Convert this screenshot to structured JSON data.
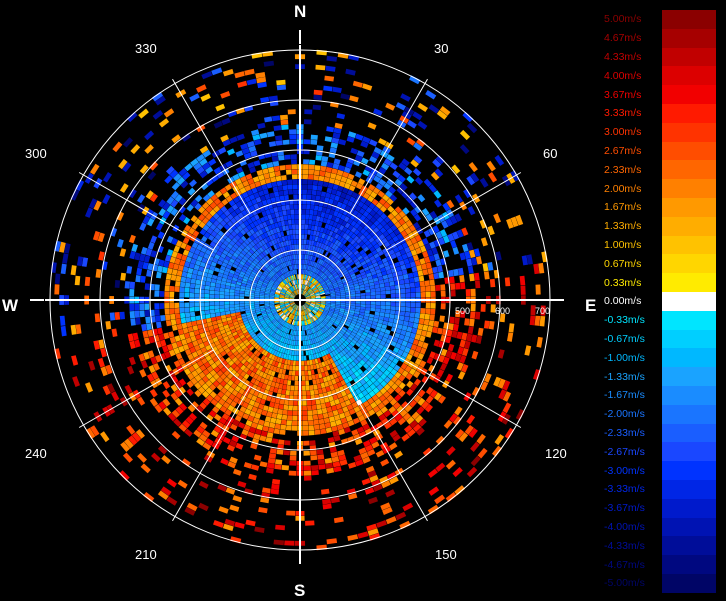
{
  "compass": {
    "n": "N",
    "e": "E",
    "s": "S",
    "w": "W"
  },
  "azimuth_labels": [
    "30",
    "60",
    "120",
    "150",
    "210",
    "240",
    "300",
    "330"
  ],
  "range_labels": [
    "500",
    "600",
    "700"
  ],
  "colorbar": {
    "levels": [
      {
        "label": "5.00m/s",
        "color": "#8b0000"
      },
      {
        "label": "4.67m/s",
        "color": "#a60000"
      },
      {
        "label": "4.33m/s",
        "color": "#c10000"
      },
      {
        "label": "4.00m/s",
        "color": "#dc0000"
      },
      {
        "label": "3.67m/s",
        "color": "#f20000"
      },
      {
        "label": "3.33m/s",
        "color": "#ff1a00"
      },
      {
        "label": "3.00m/s",
        "color": "#ff3300"
      },
      {
        "label": "2.67m/s",
        "color": "#ff4d00"
      },
      {
        "label": "2.33m/s",
        "color": "#ff6600"
      },
      {
        "label": "2.00m/s",
        "color": "#ff8000"
      },
      {
        "label": "1.67m/s",
        "color": "#ff9900"
      },
      {
        "label": "1.33m/s",
        "color": "#ffad00"
      },
      {
        "label": "1.00m/s",
        "color": "#ffc200"
      },
      {
        "label": "0.67m/s",
        "color": "#ffd600"
      },
      {
        "label": "0.33m/s",
        "color": "#ffeb00"
      },
      {
        "label": "0.00m/s",
        "color": "#ffffff"
      },
      {
        "label": "-0.33m/s",
        "color": "#00e5ff"
      },
      {
        "label": "-0.67m/s",
        "color": "#00cfff"
      },
      {
        "label": "-1.00m/s",
        "color": "#00b8ff"
      },
      {
        "label": "-1.33m/s",
        "color": "#1aa3ff"
      },
      {
        "label": "-1.67m/s",
        "color": "#1a8cff"
      },
      {
        "label": "-2.00m/s",
        "color": "#1a75ff"
      },
      {
        "label": "-2.33m/s",
        "color": "#1a5eff"
      },
      {
        "label": "-2.67m/s",
        "color": "#1a47ff"
      },
      {
        "label": "-3.00m/s",
        "color": "#0033ff"
      },
      {
        "label": "-3.33m/s",
        "color": "#0026e6"
      },
      {
        "label": "-3.67m/s",
        "color": "#001acc"
      },
      {
        "label": "-4.00m/s",
        "color": "#0013b3"
      },
      {
        "label": "-4.33m/s",
        "color": "#000d99"
      },
      {
        "label": "-4.67m/s",
        "color": "#000880"
      },
      {
        "label": "-5.00m/s",
        "color": "#000566"
      }
    ]
  }
}
